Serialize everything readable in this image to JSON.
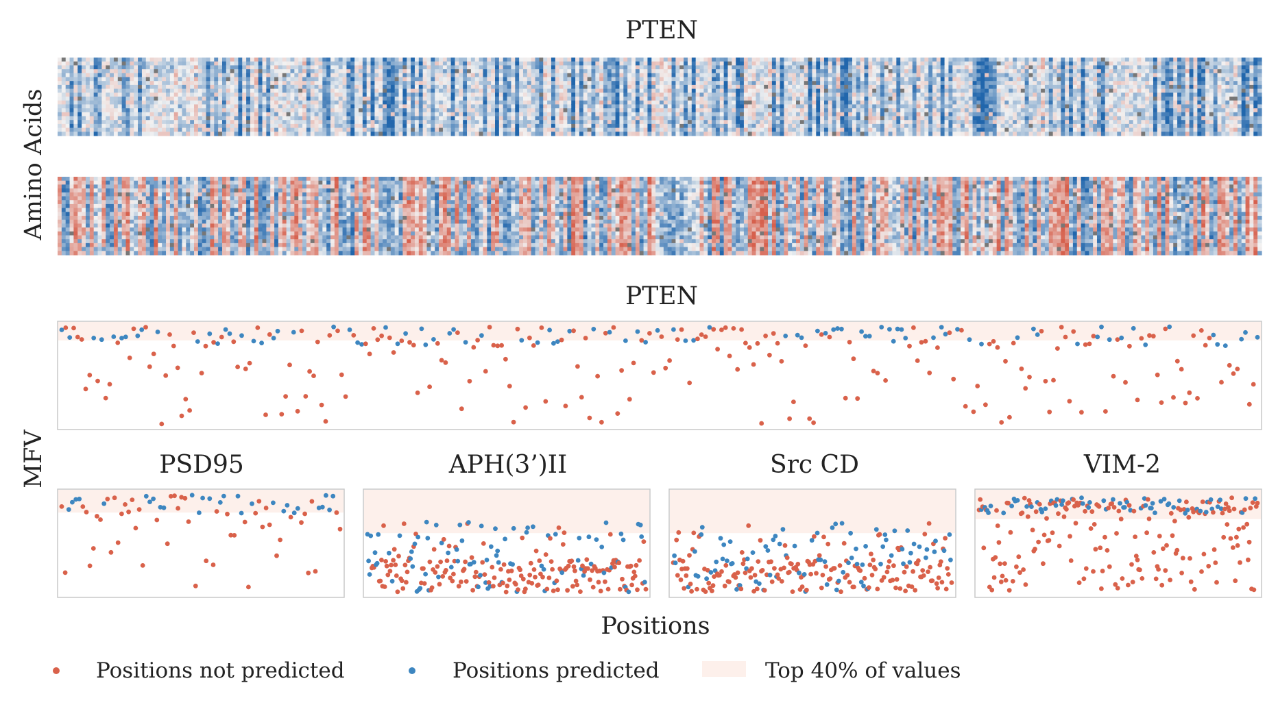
{
  "figure": {
    "top_title": "PTEN",
    "ylabel_top": "Amino Acids",
    "ylabel_bottom": "MFV",
    "xlabel": "Positions"
  },
  "colors": {
    "not_predicted": "#d9614a",
    "predicted": "#3d86c0",
    "band": "#fdf0eb",
    "frame": "#c8c8c8"
  },
  "legend": [
    {
      "label": "Positions not predicted",
      "color": "#d9614a",
      "kind": "dot"
    },
    {
      "label": "Positions predicted",
      "color": "#3d86c0",
      "kind": "dot"
    },
    {
      "label": "Top 40% of values",
      "color": "#fdf0eb",
      "kind": "patch"
    }
  ],
  "chart_data": [
    {
      "type": "heatmap",
      "title": "PTEN",
      "ylabel": "Amino Acids",
      "rows": 20,
      "cols": 300,
      "colormap": "RdBu",
      "description_panel": "top",
      "values": "diverging, predominantly negative (blue) with sparse positive (red) columns"
    },
    {
      "type": "heatmap",
      "rows": 20,
      "cols": 300,
      "colormap": "RdBu",
      "description_panel": "bottom",
      "values": "diverging, alternating red and blue column bands"
    },
    {
      "type": "scatter",
      "title": "PTEN",
      "ylabel": "MFV",
      "n_points": 300,
      "top_band_fraction": 0.4,
      "series": [
        "Positions not predicted",
        "Positions predicted"
      ]
    },
    {
      "type": "scatter",
      "title": "PSD95",
      "n_points": 80,
      "top_band_fraction": 0.4,
      "series": [
        "Positions not predicted",
        "Positions predicted"
      ]
    },
    {
      "type": "scatter",
      "title": "APH(3’)II",
      "n_points": 260,
      "top_band_fraction": 0.4,
      "series": [
        "Positions not predicted",
        "Positions predicted"
      ]
    },
    {
      "type": "scatter",
      "title": "Src CD",
      "n_points": 260,
      "top_band_fraction": 0.4,
      "series": [
        "Positions not predicted",
        "Positions predicted"
      ]
    },
    {
      "type": "scatter",
      "title": "VIM-2",
      "n_points": 240,
      "top_band_fraction": 0.4,
      "series": [
        "Positions not predicted",
        "Positions predicted"
      ]
    }
  ]
}
